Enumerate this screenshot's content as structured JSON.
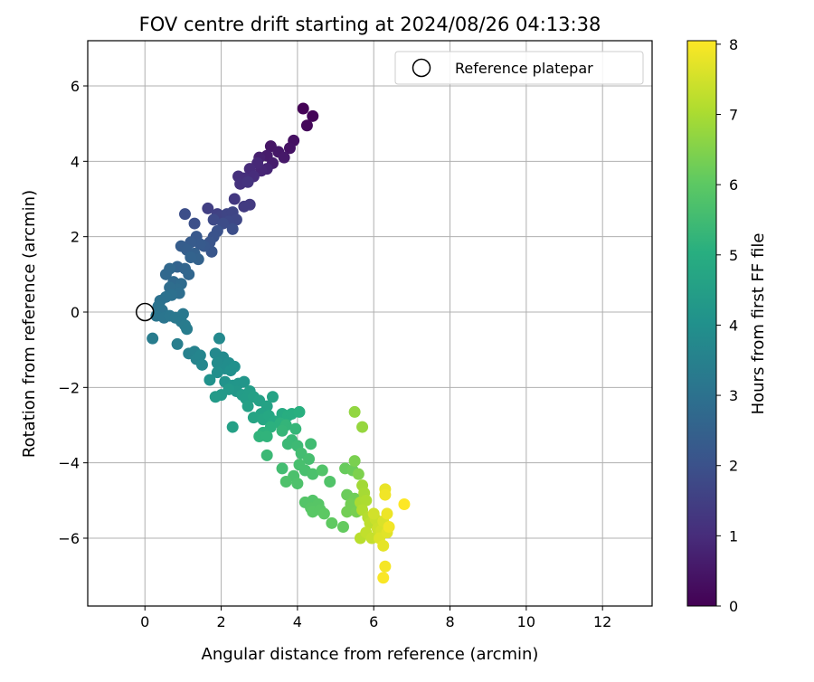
{
  "chart_data": {
    "type": "scatter",
    "title": "FOV centre drift starting at 2024/08/26 04:13:38",
    "xlabel": "Angular distance from reference (arcmin)",
    "ylabel": "Rotation from reference (arcmin)",
    "xlim": [
      -1.5,
      13.3
    ],
    "ylim": [
      -7.8,
      7.2
    ],
    "xticks": [
      0,
      2,
      4,
      6,
      8,
      10,
      12
    ],
    "yticks": [
      -6,
      -4,
      -2,
      0,
      2,
      4,
      6
    ],
    "grid": true,
    "legend": {
      "placement": "top-right",
      "entries": [
        "Reference platepar"
      ]
    },
    "reference_point": {
      "name": "Reference platepar",
      "x": 0,
      "y": 0,
      "marker": "hollow-circle"
    },
    "colorbar": {
      "label": "Hours from first FF file",
      "colormap": "viridis",
      "range": [
        0,
        8.05
      ],
      "ticks": [
        0,
        1,
        2,
        3,
        4,
        5,
        6,
        7,
        8
      ]
    },
    "points": [
      {
        "x": 4.15,
        "y": 5.4,
        "c": 0.05
      },
      {
        "x": 4.4,
        "y": 5.2,
        "c": 0.1
      },
      {
        "x": 4.25,
        "y": 4.95,
        "c": 0.15
      },
      {
        "x": 3.9,
        "y": 4.55,
        "c": 0.35
      },
      {
        "x": 3.8,
        "y": 4.35,
        "c": 0.4
      },
      {
        "x": 3.3,
        "y": 4.4,
        "c": 0.45
      },
      {
        "x": 3.5,
        "y": 4.25,
        "c": 0.5
      },
      {
        "x": 3.65,
        "y": 4.1,
        "c": 0.55
      },
      {
        "x": 3.2,
        "y": 4.15,
        "c": 0.6
      },
      {
        "x": 3.35,
        "y": 3.95,
        "c": 0.65
      },
      {
        "x": 3.0,
        "y": 4.1,
        "c": 0.7
      },
      {
        "x": 3.2,
        "y": 3.8,
        "c": 0.8
      },
      {
        "x": 3.05,
        "y": 3.75,
        "c": 0.85
      },
      {
        "x": 2.95,
        "y": 3.95,
        "c": 0.9
      },
      {
        "x": 2.75,
        "y": 3.8,
        "c": 0.95
      },
      {
        "x": 2.85,
        "y": 3.6,
        "c": 1.0
      },
      {
        "x": 2.6,
        "y": 3.55,
        "c": 1.05
      },
      {
        "x": 2.45,
        "y": 3.6,
        "c": 1.1
      },
      {
        "x": 2.5,
        "y": 3.4,
        "c": 1.15
      },
      {
        "x": 2.7,
        "y": 3.45,
        "c": 1.2
      },
      {
        "x": 2.35,
        "y": 3.0,
        "c": 1.3
      },
      {
        "x": 2.75,
        "y": 2.85,
        "c": 1.35
      },
      {
        "x": 2.6,
        "y": 2.8,
        "c": 1.4
      },
      {
        "x": 1.65,
        "y": 2.75,
        "c": 1.5
      },
      {
        "x": 1.9,
        "y": 2.6,
        "c": 1.55
      },
      {
        "x": 2.0,
        "y": 2.55,
        "c": 1.6
      },
      {
        "x": 2.15,
        "y": 2.6,
        "c": 1.65
      },
      {
        "x": 2.3,
        "y": 2.65,
        "c": 1.65
      },
      {
        "x": 2.4,
        "y": 2.45,
        "c": 1.7
      },
      {
        "x": 2.2,
        "y": 2.4,
        "c": 1.75
      },
      {
        "x": 1.8,
        "y": 2.45,
        "c": 1.8
      },
      {
        "x": 2.05,
        "y": 2.35,
        "c": 1.85
      },
      {
        "x": 2.3,
        "y": 2.2,
        "c": 1.9
      },
      {
        "x": 1.05,
        "y": 2.6,
        "c": 1.9
      },
      {
        "x": 1.3,
        "y": 2.35,
        "c": 1.95
      },
      {
        "x": 1.9,
        "y": 2.15,
        "c": 2.0
      },
      {
        "x": 1.8,
        "y": 2.0,
        "c": 2.05
      },
      {
        "x": 1.7,
        "y": 1.85,
        "c": 2.1
      },
      {
        "x": 1.75,
        "y": 1.6,
        "c": 2.15
      },
      {
        "x": 1.55,
        "y": 1.75,
        "c": 2.2
      },
      {
        "x": 1.35,
        "y": 2.0,
        "c": 2.2
      },
      {
        "x": 1.45,
        "y": 1.8,
        "c": 2.25
      },
      {
        "x": 1.2,
        "y": 1.85,
        "c": 2.3
      },
      {
        "x": 0.95,
        "y": 1.75,
        "c": 2.35
      },
      {
        "x": 1.1,
        "y": 1.65,
        "c": 2.4
      },
      {
        "x": 1.3,
        "y": 1.55,
        "c": 2.45
      },
      {
        "x": 1.4,
        "y": 1.4,
        "c": 2.5
      },
      {
        "x": 1.2,
        "y": 1.45,
        "c": 2.55
      },
      {
        "x": 0.85,
        "y": 1.2,
        "c": 2.55
      },
      {
        "x": 1.05,
        "y": 1.15,
        "c": 2.6
      },
      {
        "x": 1.15,
        "y": 1.0,
        "c": 2.65
      },
      {
        "x": 0.55,
        "y": 1.0,
        "c": 2.7
      },
      {
        "x": 0.65,
        "y": 1.15,
        "c": 2.7
      },
      {
        "x": 0.75,
        "y": 0.8,
        "c": 2.75
      },
      {
        "x": 0.95,
        "y": 0.75,
        "c": 2.8
      },
      {
        "x": 0.85,
        "y": 0.6,
        "c": 2.85
      },
      {
        "x": 0.65,
        "y": 0.65,
        "c": 2.85
      },
      {
        "x": 0.9,
        "y": 0.5,
        "c": 2.9
      },
      {
        "x": 0.7,
        "y": 0.45,
        "c": 2.95
      },
      {
        "x": 0.55,
        "y": 0.4,
        "c": 3.0
      },
      {
        "x": 0.4,
        "y": 0.3,
        "c": 3.0
      },
      {
        "x": 0.35,
        "y": 0.15,
        "c": 3.05
      },
      {
        "x": 0.45,
        "y": 0.05,
        "c": 3.05
      },
      {
        "x": 0.3,
        "y": -0.1,
        "c": 3.1
      },
      {
        "x": 0.5,
        "y": -0.15,
        "c": 3.1
      },
      {
        "x": 0.65,
        "y": -0.1,
        "c": 3.15
      },
      {
        "x": 0.8,
        "y": -0.15,
        "c": 3.2
      },
      {
        "x": 1.0,
        "y": -0.05,
        "c": 3.2
      },
      {
        "x": 0.95,
        "y": -0.25,
        "c": 3.25
      },
      {
        "x": 1.05,
        "y": -0.35,
        "c": 3.3
      },
      {
        "x": 1.1,
        "y": -0.45,
        "c": 3.35
      },
      {
        "x": 0.2,
        "y": -0.7,
        "c": 3.35
      },
      {
        "x": 0.85,
        "y": -0.85,
        "c": 3.4
      },
      {
        "x": 1.15,
        "y": -1.1,
        "c": 3.5
      },
      {
        "x": 1.3,
        "y": -1.05,
        "c": 3.55
      },
      {
        "x": 1.35,
        "y": -1.25,
        "c": 3.6
      },
      {
        "x": 1.45,
        "y": -1.15,
        "c": 3.65
      },
      {
        "x": 1.5,
        "y": -1.4,
        "c": 3.7
      },
      {
        "x": 1.85,
        "y": -1.1,
        "c": 3.75
      },
      {
        "x": 1.95,
        "y": -0.7,
        "c": 3.75
      },
      {
        "x": 2.05,
        "y": -1.2,
        "c": 3.8
      },
      {
        "x": 1.9,
        "y": -1.35,
        "c": 3.85
      },
      {
        "x": 2.2,
        "y": -1.35,
        "c": 3.9
      },
      {
        "x": 2.1,
        "y": -1.5,
        "c": 3.9
      },
      {
        "x": 1.9,
        "y": -1.6,
        "c": 3.95
      },
      {
        "x": 2.25,
        "y": -1.55,
        "c": 4.0
      },
      {
        "x": 2.35,
        "y": -1.45,
        "c": 4.0
      },
      {
        "x": 1.7,
        "y": -1.8,
        "c": 4.05
      },
      {
        "x": 2.1,
        "y": -1.85,
        "c": 4.1
      },
      {
        "x": 2.3,
        "y": -1.95,
        "c": 4.15
      },
      {
        "x": 2.45,
        "y": -1.9,
        "c": 4.2
      },
      {
        "x": 2.6,
        "y": -1.85,
        "c": 4.2
      },
      {
        "x": 2.4,
        "y": -2.1,
        "c": 4.25
      },
      {
        "x": 2.2,
        "y": -2.05,
        "c": 4.3
      },
      {
        "x": 2.0,
        "y": -2.2,
        "c": 4.3
      },
      {
        "x": 1.85,
        "y": -2.25,
        "c": 4.35
      },
      {
        "x": 2.55,
        "y": -2.2,
        "c": 4.4
      },
      {
        "x": 2.75,
        "y": -2.1,
        "c": 4.45
      },
      {
        "x": 2.65,
        "y": -2.3,
        "c": 4.45
      },
      {
        "x": 2.85,
        "y": -2.25,
        "c": 4.5
      },
      {
        "x": 3.0,
        "y": -2.35,
        "c": 4.55
      },
      {
        "x": 2.7,
        "y": -2.5,
        "c": 4.55
      },
      {
        "x": 2.3,
        "y": -3.05,
        "c": 4.55
      },
      {
        "x": 3.2,
        "y": -2.5,
        "c": 4.6
      },
      {
        "x": 3.35,
        "y": -2.25,
        "c": 4.65
      },
      {
        "x": 3.05,
        "y": -2.7,
        "c": 4.65
      },
      {
        "x": 2.85,
        "y": -2.8,
        "c": 4.7
      },
      {
        "x": 3.1,
        "y": -2.85,
        "c": 4.75
      },
      {
        "x": 3.25,
        "y": -2.75,
        "c": 4.8
      },
      {
        "x": 3.4,
        "y": -2.9,
        "c": 4.85
      },
      {
        "x": 3.6,
        "y": -2.7,
        "c": 4.9
      },
      {
        "x": 3.75,
        "y": -2.75,
        "c": 5.0
      },
      {
        "x": 3.85,
        "y": -2.7,
        "c": 5.0
      },
      {
        "x": 4.05,
        "y": -2.65,
        "c": 5.05
      },
      {
        "x": 3.55,
        "y": -2.95,
        "c": 5.1
      },
      {
        "x": 3.3,
        "y": -3.05,
        "c": 5.1
      },
      {
        "x": 3.1,
        "y": -3.2,
        "c": 5.15
      },
      {
        "x": 3.0,
        "y": -3.3,
        "c": 5.2
      },
      {
        "x": 3.2,
        "y": -3.3,
        "c": 5.2
      },
      {
        "x": 3.7,
        "y": -3.0,
        "c": 5.25
      },
      {
        "x": 3.95,
        "y": -3.1,
        "c": 5.3
      },
      {
        "x": 3.6,
        "y": -3.15,
        "c": 5.3
      },
      {
        "x": 3.85,
        "y": -3.4,
        "c": 5.35
      },
      {
        "x": 3.75,
        "y": -3.5,
        "c": 5.4
      },
      {
        "x": 3.2,
        "y": -3.8,
        "c": 5.4
      },
      {
        "x": 4.0,
        "y": -3.55,
        "c": 5.45
      },
      {
        "x": 4.35,
        "y": -3.5,
        "c": 5.5
      },
      {
        "x": 4.1,
        "y": -3.75,
        "c": 5.55
      },
      {
        "x": 3.6,
        "y": -4.15,
        "c": 5.55
      },
      {
        "x": 4.3,
        "y": -3.9,
        "c": 5.6
      },
      {
        "x": 4.05,
        "y": -4.05,
        "c": 5.65
      },
      {
        "x": 4.2,
        "y": -4.2,
        "c": 5.65
      },
      {
        "x": 4.4,
        "y": -4.3,
        "c": 5.7
      },
      {
        "x": 3.9,
        "y": -4.35,
        "c": 5.7
      },
      {
        "x": 3.7,
        "y": -4.5,
        "c": 5.75
      },
      {
        "x": 4.0,
        "y": -4.55,
        "c": 5.75
      },
      {
        "x": 4.65,
        "y": -4.2,
        "c": 5.8
      },
      {
        "x": 4.85,
        "y": -4.5,
        "c": 5.8
      },
      {
        "x": 4.2,
        "y": -5.05,
        "c": 5.85
      },
      {
        "x": 4.4,
        "y": -5.0,
        "c": 5.85
      },
      {
        "x": 4.35,
        "y": -5.2,
        "c": 5.9
      },
      {
        "x": 4.55,
        "y": -5.1,
        "c": 5.9
      },
      {
        "x": 4.4,
        "y": -5.3,
        "c": 5.95
      },
      {
        "x": 4.6,
        "y": -5.25,
        "c": 5.95
      },
      {
        "x": 4.7,
        "y": -5.35,
        "c": 6.0
      },
      {
        "x": 4.9,
        "y": -5.6,
        "c": 6.05
      },
      {
        "x": 5.2,
        "y": -5.7,
        "c": 6.1
      },
      {
        "x": 5.25,
        "y": -4.15,
        "c": 6.15
      },
      {
        "x": 5.45,
        "y": -4.2,
        "c": 6.2
      },
      {
        "x": 5.3,
        "y": -4.85,
        "c": 6.2
      },
      {
        "x": 5.5,
        "y": -4.95,
        "c": 6.25
      },
      {
        "x": 5.4,
        "y": -5.1,
        "c": 6.3
      },
      {
        "x": 5.3,
        "y": -5.3,
        "c": 6.3
      },
      {
        "x": 5.55,
        "y": -5.3,
        "c": 6.35
      },
      {
        "x": 5.5,
        "y": -3.95,
        "c": 6.4
      },
      {
        "x": 5.6,
        "y": -4.3,
        "c": 6.45
      },
      {
        "x": 5.5,
        "y": -2.65,
        "c": 6.7
      },
      {
        "x": 5.7,
        "y": -3.05,
        "c": 6.75
      },
      {
        "x": 5.7,
        "y": -4.6,
        "c": 6.9
      },
      {
        "x": 5.75,
        "y": -4.8,
        "c": 6.95
      },
      {
        "x": 5.65,
        "y": -5.05,
        "c": 7.0
      },
      {
        "x": 5.8,
        "y": -5.0,
        "c": 7.05
      },
      {
        "x": 5.7,
        "y": -5.25,
        "c": 7.1
      },
      {
        "x": 5.85,
        "y": -5.45,
        "c": 7.15
      },
      {
        "x": 5.65,
        "y": -6.0,
        "c": 7.2
      },
      {
        "x": 5.9,
        "y": -5.6,
        "c": 7.25
      },
      {
        "x": 5.8,
        "y": -5.85,
        "c": 7.3
      },
      {
        "x": 5.95,
        "y": -6.0,
        "c": 7.35
      },
      {
        "x": 6.05,
        "y": -5.5,
        "c": 7.4
      },
      {
        "x": 6.1,
        "y": -5.75,
        "c": 7.45
      },
      {
        "x": 6.0,
        "y": -5.35,
        "c": 7.5
      },
      {
        "x": 6.2,
        "y": -5.8,
        "c": 7.55
      },
      {
        "x": 6.25,
        "y": -5.55,
        "c": 7.6
      },
      {
        "x": 6.15,
        "y": -6.0,
        "c": 7.65
      },
      {
        "x": 6.35,
        "y": -5.85,
        "c": 7.7
      },
      {
        "x": 6.25,
        "y": -6.2,
        "c": 7.75
      },
      {
        "x": 6.3,
        "y": -4.7,
        "c": 7.8
      },
      {
        "x": 6.35,
        "y": -5.35,
        "c": 7.85
      },
      {
        "x": 6.4,
        "y": -5.7,
        "c": 7.9
      },
      {
        "x": 6.3,
        "y": -6.75,
        "c": 7.95
      },
      {
        "x": 6.25,
        "y": -7.05,
        "c": 8.0
      },
      {
        "x": 6.8,
        "y": -5.1,
        "c": 8.05
      },
      {
        "x": 6.3,
        "y": -4.85,
        "c": 7.9
      }
    ]
  }
}
